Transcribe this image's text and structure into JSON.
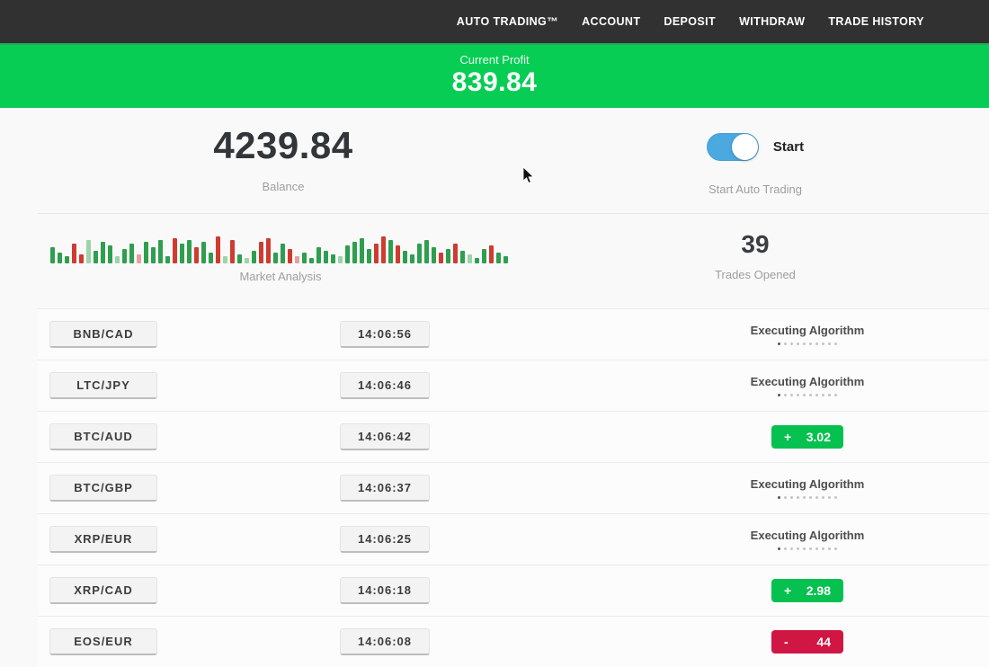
{
  "nav": {
    "items": [
      {
        "label": "AUTO TRADING™"
      },
      {
        "label": "ACCOUNT"
      },
      {
        "label": "DEPOSIT"
      },
      {
        "label": "WITHDRAW"
      },
      {
        "label": "TRADE HISTORY"
      }
    ]
  },
  "profit_banner": {
    "label": "Current Profit",
    "value": "839.84"
  },
  "dashboard": {
    "balance": {
      "value": "4239.84",
      "label": "Balance"
    },
    "auto_trading": {
      "toggle_label": "Start",
      "sublabel": "Start Auto Trading",
      "on": true
    },
    "market": {
      "label": "Market Analysis"
    },
    "trades_opened": {
      "value": "39",
      "label": "Trades Opened"
    }
  },
  "chart_data": {
    "type": "bar",
    "title": "Market Analysis",
    "note": "decorative candlestick-style sparkline, green=up red=down, heights in px",
    "bars": [
      [
        18,
        "g"
      ],
      [
        12,
        "g"
      ],
      [
        8,
        "g"
      ],
      [
        22,
        "r"
      ],
      [
        10,
        "r"
      ],
      [
        26,
        "lg"
      ],
      [
        14,
        "g"
      ],
      [
        24,
        "g"
      ],
      [
        20,
        "g"
      ],
      [
        8,
        "lg"
      ],
      [
        16,
        "g"
      ],
      [
        22,
        "g"
      ],
      [
        10,
        "lr"
      ],
      [
        24,
        "g"
      ],
      [
        18,
        "g"
      ],
      [
        26,
        "g"
      ],
      [
        8,
        "g"
      ],
      [
        28,
        "r"
      ],
      [
        22,
        "g"
      ],
      [
        26,
        "g"
      ],
      [
        18,
        "r"
      ],
      [
        24,
        "g"
      ],
      [
        12,
        "g"
      ],
      [
        30,
        "r"
      ],
      [
        8,
        "lg"
      ],
      [
        26,
        "r"
      ],
      [
        10,
        "g"
      ],
      [
        6,
        "lg"
      ],
      [
        14,
        "g"
      ],
      [
        24,
        "r"
      ],
      [
        28,
        "r"
      ],
      [
        12,
        "g"
      ],
      [
        22,
        "g"
      ],
      [
        16,
        "r"
      ],
      [
        8,
        "lr"
      ],
      [
        12,
        "g"
      ],
      [
        6,
        "g"
      ],
      [
        18,
        "g"
      ],
      [
        14,
        "g"
      ],
      [
        10,
        "g"
      ],
      [
        8,
        "lg"
      ],
      [
        20,
        "g"
      ],
      [
        24,
        "g"
      ],
      [
        28,
        "g"
      ],
      [
        16,
        "g"
      ],
      [
        22,
        "r"
      ],
      [
        30,
        "r"
      ],
      [
        26,
        "g"
      ],
      [
        20,
        "r"
      ],
      [
        14,
        "g"
      ],
      [
        10,
        "g"
      ],
      [
        22,
        "g"
      ],
      [
        26,
        "g"
      ],
      [
        18,
        "g"
      ],
      [
        12,
        "r"
      ],
      [
        16,
        "g"
      ],
      [
        22,
        "r"
      ],
      [
        14,
        "g"
      ],
      [
        10,
        "lg"
      ],
      [
        6,
        "g"
      ],
      [
        16,
        "g"
      ],
      [
        20,
        "r"
      ],
      [
        12,
        "g"
      ],
      [
        8,
        "g"
      ]
    ],
    "bar_colors": {
      "g": "#2f9e4f",
      "r": "#cf3b30",
      "lg": "#9bd5a7",
      "lr": "#e2a39c"
    }
  },
  "trades_table": {
    "executing_dots": 10,
    "rows": [
      {
        "pair": "BNB/CAD",
        "time": "14:06:56",
        "status": {
          "type": "executing",
          "label": "Executing Algorithm"
        }
      },
      {
        "pair": "LTC/JPY",
        "time": "14:06:46",
        "status": {
          "type": "executing",
          "label": "Executing Algorithm"
        }
      },
      {
        "pair": "BTC/AUD",
        "time": "14:06:42",
        "status": {
          "type": "profit",
          "sign": "+",
          "value": "3.02"
        }
      },
      {
        "pair": "BTC/GBP",
        "time": "14:06:37",
        "status": {
          "type": "executing",
          "label": "Executing Algorithm"
        }
      },
      {
        "pair": "XRP/EUR",
        "time": "14:06:25",
        "status": {
          "type": "executing",
          "label": "Executing Algorithm"
        }
      },
      {
        "pair": "XRP/CAD",
        "time": "14:06:18",
        "status": {
          "type": "profit",
          "sign": "+",
          "value": "2.98"
        }
      },
      {
        "pair": "EOS/EUR",
        "time": "14:06:08",
        "status": {
          "type": "loss",
          "sign": "-",
          "value": "44"
        }
      }
    ]
  },
  "colors": {
    "nav_bg": "#313131",
    "banner_green": "#07cd55",
    "profit_badge_green": "#06c14f",
    "loss_badge_red": "#d01744",
    "toggle_blue": "#4ba9e0"
  }
}
